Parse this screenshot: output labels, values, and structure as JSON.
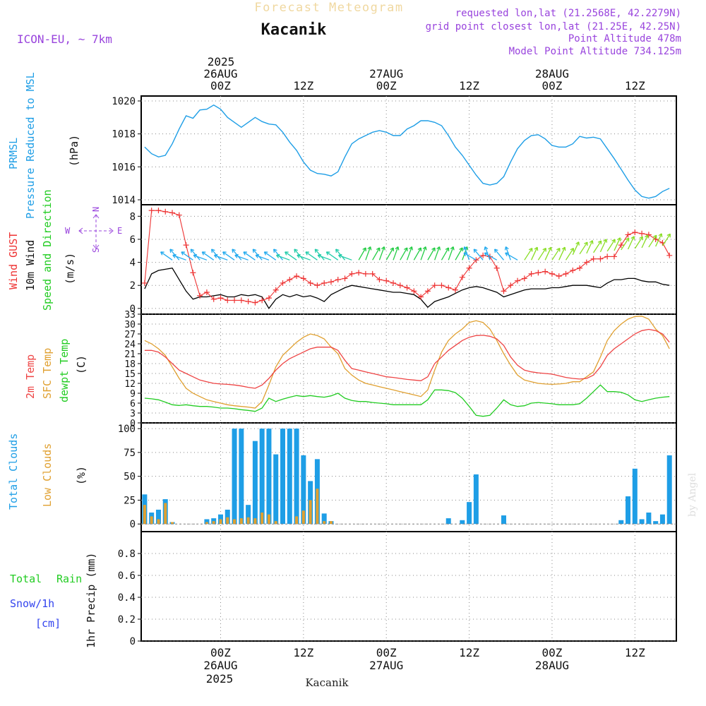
{
  "header": {
    "title": "Forecast Meteogram",
    "location": "Kacanik",
    "model": "ICON-EU, ~ 7km",
    "requested": "requested lon,lat (21.2568E, 42.2279N)",
    "grid_point": "grid point closest lon,lat (21.25E, 42.25N)",
    "point_altitude": "Point Altitude 478m",
    "model_altitude": "Model Point Altitude 734.125m",
    "footer_location": "Kacanik",
    "credit": "by Angel"
  },
  "colors": {
    "pressure": "#1e9ee6",
    "gust": "#ee3333",
    "wind": "#000000",
    "wind_dir": "#22cc22",
    "temp2m": "#ee4444",
    "sfc_temp": "#e0a030",
    "dewpt": "#22cc22",
    "total_clouds": "#1e9ee6",
    "low_clouds": "#e0a030",
    "rain": "#22cc22",
    "snow": "#3344ee",
    "meta": "#9944dd"
  },
  "time_axis": {
    "top_year": "2025",
    "bottom_year": "2025",
    "ticks": [
      {
        "hour": 0,
        "hour_label": "00Z",
        "date_label": "26AUG"
      },
      {
        "hour": 12,
        "hour_label": "12Z",
        "date_label": ""
      },
      {
        "hour": 24,
        "hour_label": "00Z",
        "date_label": "27AUG"
      },
      {
        "hour": 36,
        "hour_label": "12Z",
        "date_label": ""
      },
      {
        "hour": 48,
        "hour_label": "00Z",
        "date_label": "28AUG"
      },
      {
        "hour": 60,
        "hour_label": "12Z",
        "date_label": ""
      }
    ]
  },
  "panel_labels": {
    "pressure": {
      "name": "PRMSL",
      "desc": "Pressure Reduced to MSL",
      "unit": "(hPa)"
    },
    "wind": {
      "gust": "Wind GUST",
      "wind": "10m Wind",
      "dir": "Speed and Direction",
      "unit": "(m/s)",
      "compass": {
        "n": "N",
        "s": "S",
        "e": "E",
        "w": "W"
      }
    },
    "temp": {
      "t2m": "2m Temp",
      "sfc": "SFC Temp",
      "dew": "dewpt Temp",
      "unit": "(C)"
    },
    "clouds": {
      "total": "Total Clouds",
      "low": "Low Clouds",
      "unit": "(%)"
    },
    "precip": {
      "total": "Total",
      "rain": "Rain",
      "snow": "Snow/1h",
      "snow_unit": "[cm]",
      "axis": "1hr Precip (mm)"
    }
  },
  "chart_data": [
    {
      "type": "line",
      "name": "pressure",
      "ylim": [
        1013.7,
        1020.3
      ],
      "yticks": [
        1014,
        1016,
        1018,
        1020
      ],
      "grid": true,
      "x": [
        -11,
        -10,
        -9,
        -8,
        -7,
        -6,
        -5,
        -4,
        -3,
        -2,
        -1,
        0,
        1,
        2,
        3,
        4,
        5,
        6,
        7,
        8,
        9,
        10,
        11,
        12,
        13,
        14,
        15,
        16,
        17,
        18,
        19,
        20,
        21,
        22,
        23,
        24,
        25,
        26,
        27,
        28,
        29,
        30,
        31,
        32,
        33,
        34,
        35,
        36,
        37,
        38,
        39,
        40,
        41,
        42,
        43,
        44,
        45,
        46,
        47,
        48,
        49,
        50,
        51,
        52,
        53,
        54,
        55,
        56,
        57,
        58,
        59,
        60,
        61,
        62,
        63,
        64,
        65
      ],
      "series": [
        {
          "values": [
            1017.2,
            1016.8,
            1016.6,
            1016.7,
            1017.4,
            1018.3,
            1019.1,
            1018.95,
            1019.45,
            1019.5,
            1019.75,
            1019.5,
            1019.0,
            1018.7,
            1018.4,
            1018.7,
            1019.0,
            1018.75,
            1018.6,
            1018.55,
            1018.1,
            1017.5,
            1017.0,
            1016.3,
            1015.8,
            1015.6,
            1015.55,
            1015.45,
            1015.7,
            1016.6,
            1017.4,
            1017.7,
            1017.9,
            1018.1,
            1018.2,
            1018.1,
            1017.9,
            1017.9,
            1018.3,
            1018.5,
            1018.8,
            1018.8,
            1018.7,
            1018.5,
            1017.9,
            1017.2,
            1016.7,
            1016.1,
            1015.5,
            1015.0,
            1014.9,
            1015.0,
            1015.4,
            1016.3,
            1017.1,
            1017.6,
            1017.9,
            1017.95,
            1017.7,
            1017.3,
            1017.2,
            1017.2,
            1017.4,
            1017.85,
            1017.75,
            1017.8,
            1017.7,
            1017.1,
            1016.5,
            1015.85,
            1015.2,
            1014.6,
            1014.2,
            1014.1,
            1014.2,
            1014.5,
            1014.7
          ]
        }
      ]
    },
    {
      "type": "line",
      "name": "wind",
      "ylim": [
        -0.5,
        9.0
      ],
      "yticks": [
        0,
        2,
        4,
        6,
        8
      ],
      "grid": true,
      "x": [
        -11,
        -10,
        -9,
        -8,
        -7,
        -6,
        -5,
        -4,
        -3,
        -2,
        -1,
        0,
        1,
        2,
        3,
        4,
        5,
        6,
        7,
        8,
        9,
        10,
        11,
        12,
        13,
        14,
        15,
        16,
        17,
        18,
        19,
        20,
        21,
        22,
        23,
        24,
        25,
        26,
        27,
        28,
        29,
        30,
        31,
        32,
        33,
        34,
        35,
        36,
        37,
        38,
        39,
        40,
        41,
        42,
        43,
        44,
        45,
        46,
        47,
        48,
        49,
        50,
        51,
        52,
        53,
        54,
        55,
        56,
        57,
        58,
        59,
        60,
        61,
        62,
        63,
        64,
        65
      ],
      "series": [
        {
          "name": "Wind GUST",
          "values": [
            2.2,
            8.5,
            8.5,
            8.4,
            8.3,
            8.1,
            5.5,
            3.1,
            1.1,
            1.4,
            0.8,
            0.9,
            0.7,
            0.7,
            0.7,
            0.6,
            0.5,
            0.7,
            0.9,
            1.6,
            2.2,
            2.5,
            2.8,
            2.6,
            2.2,
            2.0,
            2.2,
            2.3,
            2.5,
            2.6,
            3.0,
            3.1,
            3.0,
            3.0,
            2.5,
            2.4,
            2.2,
            2.0,
            1.8,
            1.5,
            1.0,
            1.5,
            2.0,
            2.0,
            1.8,
            1.6,
            2.7,
            3.5,
            4.2,
            4.6,
            4.5,
            3.5,
            1.5,
            2.0,
            2.4,
            2.6,
            3.0,
            3.1,
            3.2,
            3.0,
            2.8,
            3.0,
            3.3,
            3.5,
            4.0,
            4.3,
            4.3,
            4.5,
            4.5,
            5.5,
            6.4,
            6.6,
            6.5,
            6.4,
            6.0,
            5.7,
            4.6
          ]
        },
        {
          "name": "10m Wind",
          "values": [
            1.7,
            3.0,
            3.3,
            3.4,
            3.5,
            2.5,
            1.5,
            0.8,
            1.0,
            1.0,
            1.1,
            1.2,
            1.0,
            1.0,
            1.2,
            1.1,
            1.2,
            1.0,
            0.0,
            0.8,
            1.2,
            1.0,
            1.2,
            1.0,
            1.1,
            0.9,
            0.6,
            1.2,
            1.5,
            1.8,
            2.0,
            1.9,
            1.8,
            1.7,
            1.6,
            1.5,
            1.4,
            1.4,
            1.3,
            1.2,
            0.8,
            0.1,
            0.6,
            0.8,
            1.0,
            1.3,
            1.6,
            1.8,
            1.9,
            1.8,
            1.6,
            1.4,
            1.0,
            1.2,
            1.4,
            1.6,
            1.7,
            1.7,
            1.7,
            1.8,
            1.8,
            1.9,
            2.0,
            2.0,
            2.0,
            1.9,
            1.8,
            2.2,
            2.5,
            2.5,
            2.6,
            2.6,
            2.4,
            2.3,
            2.3,
            2.1,
            2.0
          ]
        }
      ],
      "direction_markers": "arrows every 2h coloured by speed"
    },
    {
      "type": "line",
      "name": "temperature",
      "ylim": [
        0,
        33
      ],
      "yticks": [
        0,
        3,
        6,
        9,
        12,
        15,
        18,
        21,
        24,
        27,
        30,
        33
      ],
      "grid": true,
      "x": [
        -11,
        -10,
        -9,
        -8,
        -7,
        -6,
        -5,
        -4,
        -3,
        -2,
        -1,
        0,
        1,
        2,
        3,
        4,
        5,
        6,
        7,
        8,
        9,
        10,
        11,
        12,
        13,
        14,
        15,
        16,
        17,
        18,
        19,
        20,
        21,
        22,
        23,
        24,
        25,
        26,
        27,
        28,
        29,
        30,
        31,
        32,
        33,
        34,
        35,
        36,
        37,
        38,
        39,
        40,
        41,
        42,
        43,
        44,
        45,
        46,
        47,
        48,
        49,
        50,
        51,
        52,
        53,
        54,
        55,
        56,
        57,
        58,
        59,
        60,
        61,
        62,
        63,
        64,
        65
      ],
      "series": [
        {
          "name": "2m Temp",
          "values": [
            22.0,
            22.0,
            21.5,
            20.0,
            18.0,
            16.0,
            15.0,
            14.0,
            13.0,
            12.5,
            12.0,
            11.8,
            11.7,
            11.5,
            11.2,
            10.8,
            10.5,
            11.5,
            13.5,
            16.0,
            18.0,
            19.5,
            20.5,
            21.5,
            22.5,
            23.0,
            23.0,
            23.0,
            22.0,
            19.0,
            16.5,
            16.0,
            15.5,
            15.0,
            14.5,
            14.0,
            13.8,
            13.5,
            13.2,
            13.0,
            12.8,
            14.0,
            18.0,
            20.0,
            22.0,
            23.5,
            25.0,
            26.0,
            26.5,
            26.6,
            26.3,
            25.5,
            23.5,
            20.0,
            17.5,
            16.0,
            15.5,
            15.2,
            15.0,
            14.8,
            14.3,
            13.8,
            13.5,
            13.3,
            13.5,
            14.5,
            17.0,
            20.5,
            22.5,
            24.0,
            25.5,
            27.0,
            28.0,
            28.4,
            28.0,
            27.0,
            24.5
          ]
        },
        {
          "name": "SFC Temp",
          "values": [
            25.0,
            24.0,
            22.5,
            20.5,
            17.0,
            13.5,
            10.5,
            9.0,
            8.0,
            7.0,
            6.5,
            6.0,
            5.5,
            5.2,
            5.0,
            4.8,
            4.5,
            6.5,
            11.5,
            17.0,
            20.5,
            22.5,
            24.5,
            26.0,
            27.0,
            26.5,
            25.5,
            23.0,
            21.0,
            16.5,
            14.5,
            13.0,
            12.0,
            11.5,
            11.0,
            10.5,
            10.0,
            9.5,
            9.0,
            8.5,
            8.0,
            10.0,
            16.0,
            21.5,
            25.0,
            27.0,
            28.5,
            30.5,
            31.0,
            30.5,
            28.5,
            25.0,
            21.0,
            17.5,
            14.5,
            13.0,
            12.5,
            12.0,
            11.8,
            11.7,
            11.8,
            12.0,
            12.5,
            12.5,
            14.0,
            15.5,
            20.0,
            25.0,
            28.0,
            30.0,
            31.5,
            32.3,
            32.4,
            31.5,
            28.5,
            26.5,
            22.5
          ]
        },
        {
          "name": "dewpt Temp",
          "values": [
            7.5,
            7.3,
            7.0,
            6.3,
            5.5,
            5.3,
            5.5,
            5.2,
            5.0,
            5.0,
            4.8,
            4.5,
            4.5,
            4.3,
            4.0,
            3.8,
            3.5,
            4.5,
            7.5,
            6.5,
            7.2,
            7.8,
            8.3,
            8.0,
            8.3,
            8.0,
            7.8,
            8.2,
            9.0,
            7.5,
            6.8,
            6.5,
            6.5,
            6.2,
            6.0,
            5.8,
            5.5,
            5.5,
            5.5,
            5.5,
            5.5,
            7.0,
            10.0,
            10.0,
            9.8,
            9.2,
            7.5,
            5.0,
            2.3,
            2.0,
            2.3,
            4.5,
            7.0,
            5.5,
            5.0,
            5.2,
            6.0,
            6.2,
            6.0,
            5.8,
            5.5,
            5.5,
            5.5,
            5.8,
            7.5,
            9.5,
            11.5,
            9.5,
            9.5,
            9.3,
            8.5,
            7.0,
            6.5,
            7.0,
            7.5,
            7.8,
            8.0
          ]
        }
      ]
    },
    {
      "type": "bar",
      "name": "clouds",
      "ylim": [
        -8,
        106
      ],
      "yticks": [
        0,
        25,
        50,
        75,
        100
      ],
      "grid": true,
      "x": [
        -11,
        -10,
        -9,
        -8,
        -7,
        -6,
        -5,
        -4,
        -3,
        -2,
        -1,
        0,
        1,
        2,
        3,
        4,
        5,
        6,
        7,
        8,
        9,
        10,
        11,
        12,
        13,
        14,
        15,
        16,
        17,
        18,
        19,
        20,
        21,
        22,
        23,
        24,
        25,
        26,
        27,
        28,
        29,
        30,
        31,
        32,
        33,
        34,
        35,
        36,
        37,
        38,
        39,
        40,
        41,
        42,
        43,
        44,
        45,
        46,
        47,
        48,
        49,
        50,
        51,
        52,
        53,
        54,
        55,
        56,
        57,
        58,
        59,
        60,
        61,
        62,
        63,
        64,
        65
      ],
      "series": [
        {
          "name": "Total Clouds",
          "values": [
            31,
            12,
            15,
            26,
            2,
            0,
            0,
            0,
            0,
            5,
            6,
            10,
            15,
            100,
            100,
            20,
            87,
            100,
            100,
            73,
            100,
            100,
            100,
            72,
            45,
            68,
            11,
            3,
            0,
            0,
            0,
            0,
            0,
            0,
            0,
            0,
            0,
            0,
            0,
            0,
            0,
            0,
            0,
            0,
            6,
            0,
            4,
            23,
            52,
            0,
            0,
            0,
            9,
            0,
            0,
            0,
            0,
            0,
            0,
            0,
            0,
            0,
            0,
            0,
            0,
            0,
            0,
            0,
            0,
            4,
            29,
            58,
            5,
            12,
            3,
            10,
            72
          ]
        },
        {
          "name": "Low Clouds",
          "values": [
            20,
            8,
            5,
            22,
            2,
            0,
            0,
            0,
            0,
            2,
            3,
            5,
            7,
            5,
            6,
            7,
            6,
            12,
            10,
            3,
            0,
            0,
            8,
            14,
            25,
            37,
            3,
            3,
            0,
            0,
            0,
            0,
            0,
            0,
            0,
            0,
            0,
            0,
            0,
            0,
            0,
            0,
            0,
            0,
            0,
            0,
            0,
            0,
            0,
            0,
            0,
            0,
            0,
            0,
            0,
            0,
            0,
            0,
            0,
            0,
            0,
            0,
            0,
            0,
            0,
            0,
            0,
            0,
            0,
            0,
            0,
            0,
            0,
            0,
            0,
            0,
            0
          ]
        }
      ]
    },
    {
      "type": "line",
      "name": "precipitation",
      "ylim": [
        0,
        1.0
      ],
      "yticks": [
        0,
        0.2,
        0.4,
        0.6,
        0.8
      ],
      "grid": true,
      "series": [
        {
          "name": "Total Rain",
          "values": []
        },
        {
          "name": "Snow/1h",
          "values": []
        }
      ]
    }
  ]
}
